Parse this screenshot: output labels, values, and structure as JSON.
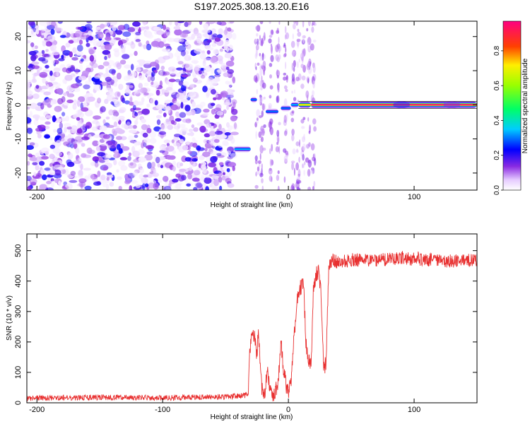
{
  "title": "S197.2025.308.13.20.E16",
  "chart_data": [
    {
      "type": "heatmap",
      "name": "spectrogram",
      "xlabel": "Height of straight line (km)",
      "ylabel": "Frequency (Hz)",
      "xlim": [
        -208,
        150
      ],
      "ylim": [
        -25,
        24.5
      ],
      "xticks": [
        -200,
        -100,
        0,
        100
      ],
      "yticks": [
        -20,
        -10,
        0,
        10,
        20
      ],
      "noise_region_x": [
        -208,
        -42
      ],
      "segments": [
        {
          "x0": -43,
          "x1": -30,
          "freq": -13,
          "amplitude": 0.35
        },
        {
          "x0": -30,
          "x1": -25,
          "freq": 1.5,
          "amplitude": 0.3
        },
        {
          "x0": -18,
          "x1": -8,
          "freq": -2,
          "amplitude": 0.3
        },
        {
          "x0": -6,
          "x1": 2,
          "freq": -1,
          "amplitude": 0.3
        },
        {
          "x0": 2,
          "x1": 8,
          "freq": 0,
          "amplitude": 0.35
        },
        {
          "x0": 8,
          "x1": 18,
          "freq": 0,
          "amplitude": 0.75
        },
        {
          "x0": 18,
          "x1": 150,
          "freq": 0,
          "amplitude": 0.98
        }
      ],
      "colorbar": {
        "label": "Normalized spectral amplitude",
        "range": [
          0,
          0.97
        ],
        "ticks": [
          "0.0",
          "0.2",
          "0.4",
          "0.6",
          "0.8"
        ],
        "tick_values": [
          0,
          0.2,
          0.4,
          0.6,
          0.8
        ]
      }
    },
    {
      "type": "line",
      "name": "snr",
      "xlabel": "Height of straight line (km)",
      "ylabel": "SNR (10 * v/v)",
      "xlim": [
        -208,
        150
      ],
      "ylim": [
        0,
        555
      ],
      "xticks": [
        -200,
        -100,
        0,
        100
      ],
      "yticks": [
        0,
        100,
        200,
        300,
        400,
        500
      ],
      "color": "#e83030",
      "series": [
        {
          "name": "SNR",
          "x": [
            -208,
            -150,
            -100,
            -50,
            -32,
            -31,
            -29,
            -27,
            -25,
            -24,
            -22,
            -21,
            -19,
            -17,
            -15,
            -12,
            -10,
            -8,
            -6,
            -4,
            -2,
            0,
            2,
            4,
            6,
            8,
            10,
            12,
            14,
            16,
            18,
            20,
            22,
            24,
            26,
            28,
            30,
            32,
            35,
            40,
            50,
            70,
            90,
            110,
            130,
            150
          ],
          "y": [
            15,
            18,
            16,
            20,
            25,
            150,
            240,
            210,
            160,
            230,
            100,
            40,
            20,
            110,
            50,
            25,
            40,
            80,
            200,
            120,
            60,
            30,
            60,
            180,
            300,
            360,
            380,
            400,
            200,
            150,
            120,
            390,
            420,
            430,
            360,
            110,
            130,
            440,
            470,
            460,
            470,
            468,
            475,
            470,
            465,
            470
          ]
        }
      ]
    }
  ]
}
